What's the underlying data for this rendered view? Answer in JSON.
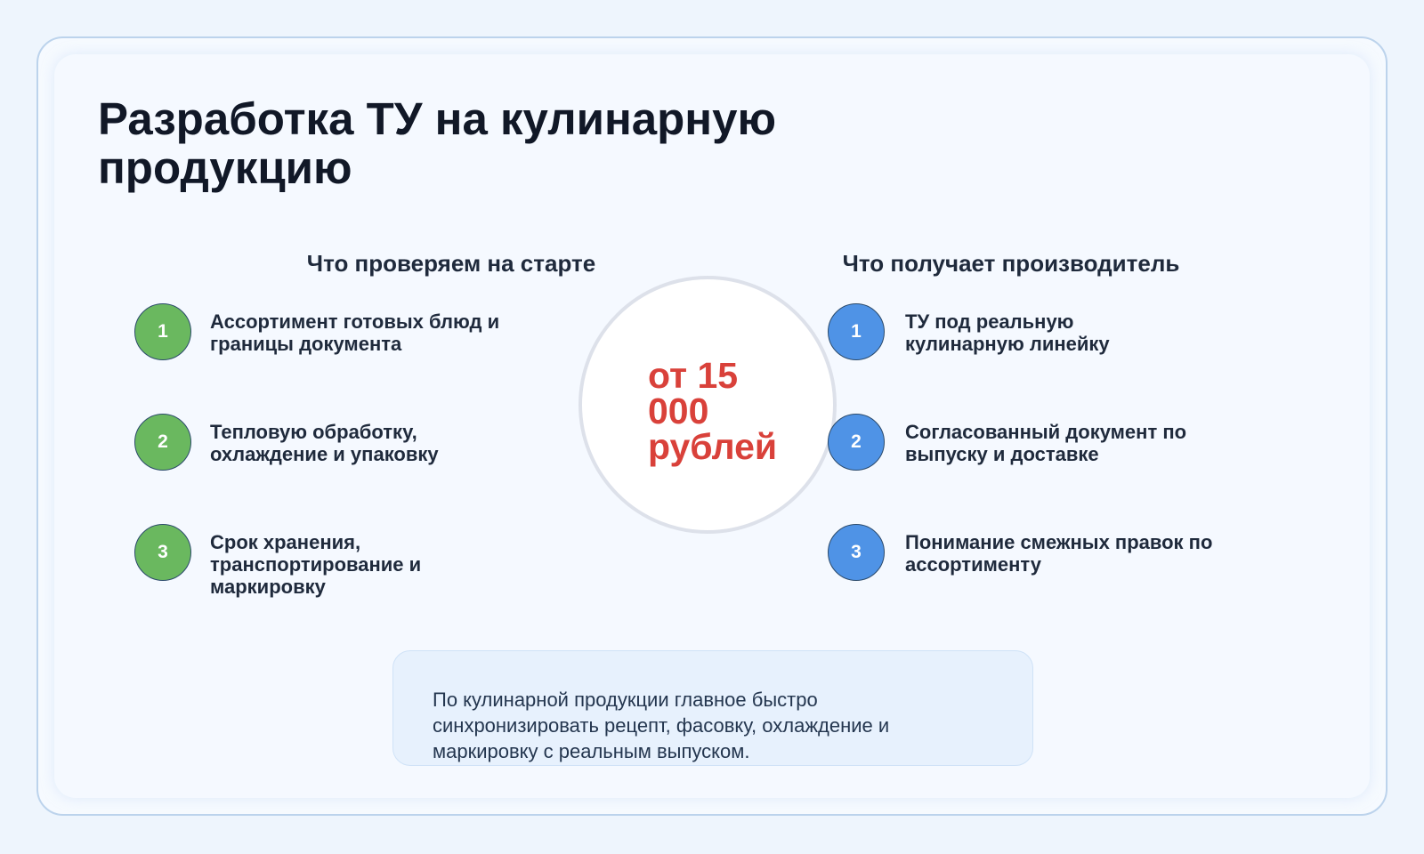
{
  "title": "Разработка ТУ на кулинарную продукцию",
  "left": {
    "heading": "Что проверяем на старте",
    "items": [
      {
        "num": "1",
        "text": "Ассортимент готовых блюд и границы документа"
      },
      {
        "num": "2",
        "text": "Тепловую обработку, охлаждение и упаковку"
      },
      {
        "num": "3",
        "text": "Срок хранения, транспортирование и маркировку"
      }
    ]
  },
  "right": {
    "heading": "Что получает производитель",
    "items": [
      {
        "num": "1",
        "text": "ТУ под реальную кулинарную линейку"
      },
      {
        "num": "2",
        "text": "Согласованный документ по выпуску и доставке"
      },
      {
        "num": "3",
        "text": "Понимание смежных правок по ассортименту"
      }
    ]
  },
  "price": "от 15 000 рублей",
  "note": "По кулинарной продукции главное быстро синхронизировать рецепт, фасовку, охлаждение и маркировку с реальным выпуском.",
  "colors": {
    "green": "#6ab85f",
    "blue": "#4f93e6",
    "price": "#d9413a",
    "title": "#111827"
  }
}
